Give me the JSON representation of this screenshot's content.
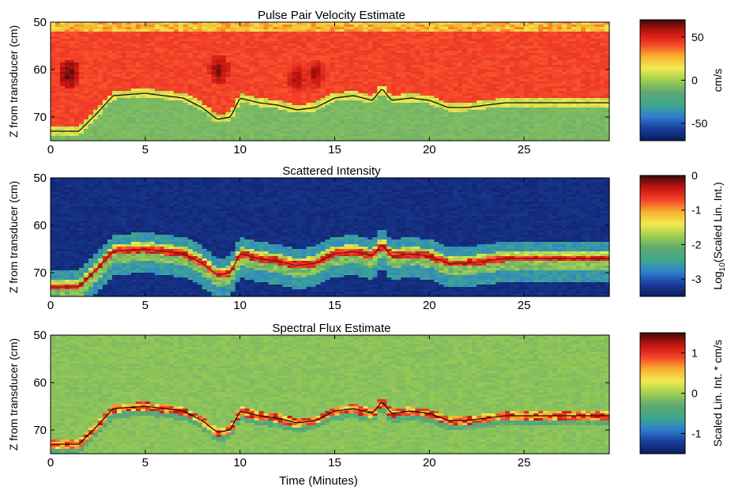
{
  "figure": {
    "xlabel": "Time (Minutes)",
    "colormap": [
      "#0b1c5a",
      "#1b3c9c",
      "#2f7fd0",
      "#3fa88a",
      "#5fa872",
      "#9fcf50",
      "#f2ea50",
      "#f7b030",
      "#f5402a",
      "#c41410",
      "#3a0c0a"
    ]
  },
  "chart_data": [
    {
      "type": "heatmap",
      "title": "Pulse Pair Velocity Estimate",
      "xlabel": "",
      "ylabel": "Z from transducer (cm)",
      "xlim": [
        0,
        29.5
      ],
      "ylim": [
        50,
        75
      ],
      "xticks": [
        0,
        5,
        10,
        15,
        20,
        25
      ],
      "yticks": [
        50,
        60,
        70
      ],
      "colorbar": {
        "label": "cm/s",
        "min": -70,
        "max": 70,
        "ticks": [
          50,
          0,
          -50
        ]
      },
      "regions": [
        {
          "name": "surface band",
          "z_range": [
            50,
            52
          ],
          "value": 25
        },
        {
          "name": "moving layer",
          "z_range": [
            52,
            "interface"
          ],
          "value": 42
        },
        {
          "name": "below interface",
          "z_range": [
            "interface",
            75
          ],
          "value": -8
        }
      ],
      "hotspots": [
        {
          "t": 1.0,
          "z": 61,
          "value": 70
        },
        {
          "t": 8.9,
          "z": 60,
          "value": 66
        },
        {
          "t": 13.0,
          "z": 62,
          "value": 62
        },
        {
          "t": 14.0,
          "z": 61,
          "value": 62
        }
      ],
      "interface": {
        "t": [
          0,
          1.5,
          2.5,
          3.3,
          5,
          7,
          8,
          8.8,
          9.5,
          10,
          11,
          12,
          13,
          14,
          15,
          16,
          17,
          17.5,
          18,
          19,
          20,
          21,
          22,
          23,
          24,
          25,
          26,
          27,
          28,
          29.5
        ],
        "z": [
          73,
          73,
          69,
          65.5,
          65,
          66,
          68,
          70.5,
          70,
          66,
          67,
          67.5,
          68.5,
          68,
          66,
          65.5,
          66.5,
          64,
          66.5,
          66,
          66.5,
          68,
          68,
          67.5,
          67,
          67,
          67,
          67,
          67,
          67
        ]
      }
    },
    {
      "type": "heatmap",
      "title": "Scattered Intensity",
      "xlabel": "",
      "ylabel": "Z from transducer (cm)",
      "xlim": [
        0,
        29.5
      ],
      "ylim": [
        50,
        75
      ],
      "xticks": [
        0,
        5,
        10,
        15,
        20,
        25
      ],
      "yticks": [
        50,
        60,
        70
      ],
      "colorbar": {
        "label": "Log10(Scaled Lin. Int.)",
        "min": -3.5,
        "max": 0,
        "ticks": [
          0,
          -1,
          -2,
          -3
        ]
      },
      "interface_ref": "same as panel 1",
      "background_value": -3.3
    },
    {
      "type": "heatmap",
      "title": "Spectral Flux Estimate",
      "xlabel": "Time (Minutes)",
      "ylabel": "Z from transducer (cm)",
      "xlim": [
        0,
        29.5
      ],
      "ylim": [
        50,
        75
      ],
      "xticks": [
        0,
        5,
        10,
        15,
        20,
        25
      ],
      "yticks": [
        50,
        60,
        70
      ],
      "colorbar": {
        "label": "Scaled Lin. Int. * cm/s",
        "min": -1.5,
        "max": 1.5,
        "ticks": [
          1,
          0,
          -1
        ]
      },
      "interface_ref": "same as panel 1",
      "background_value": -0.1
    }
  ]
}
